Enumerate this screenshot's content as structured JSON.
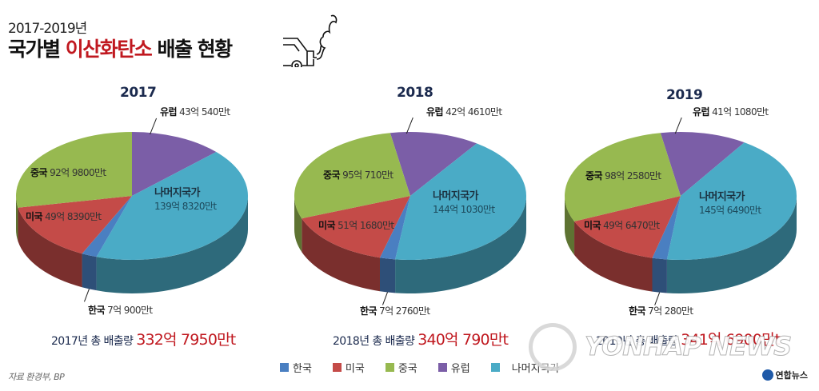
{
  "header": {
    "subtitle": "2017-2019년",
    "title_prefix": "국가별 ",
    "title_highlight": "이산화탄소",
    "title_suffix": " 배출 현황",
    "icon": "car-exhaust-icon"
  },
  "colors": {
    "korea": "#4a7fc1",
    "us": "#c44b48",
    "china": "#97b950",
    "europe": "#7b5ea7",
    "rest": "#4aabc6",
    "highlight": "#c0181f",
    "year_text": "#1b2a4e"
  },
  "charts": [
    {
      "year": "2017",
      "labels": {
        "europe": {
          "name": "유럽",
          "value": "43억 540만t"
        },
        "china": {
          "name": "중국",
          "value": "92억 9800만t"
        },
        "us": {
          "name": "미국",
          "value": "49억 8390만t"
        },
        "rest": {
          "name": "나머지국가",
          "value": "139억 8320만t"
        },
        "korea": {
          "name": "한국",
          "value": "7억 900만t"
        }
      },
      "total_label": "2017년 총 배출량 ",
      "total_value": "332억 7950만t"
    },
    {
      "year": "2018",
      "labels": {
        "europe": {
          "name": "유럽",
          "value": "42억 4610만t"
        },
        "china": {
          "name": "중국",
          "value": "95억 710만t"
        },
        "us": {
          "name": "미국",
          "value": "51억 1680만t"
        },
        "rest": {
          "name": "나머지국가",
          "value": "144억 1030만t"
        },
        "korea": {
          "name": "한국",
          "value": "7억 2760만t"
        }
      },
      "total_label": "2018년 총 배출량 ",
      "total_value": "340억 790만t"
    },
    {
      "year": "2019",
      "labels": {
        "europe": {
          "name": "유럽",
          "value": "41억 1080만t"
        },
        "china": {
          "name": "중국",
          "value": "98억 2580만t"
        },
        "us": {
          "name": "미국",
          "value": "49억 6470만t"
        },
        "rest": {
          "name": "나머지국가",
          "value": "145억 6490만t"
        },
        "korea": {
          "name": "한국",
          "value": "7억 280만t"
        }
      },
      "total_label": "2019년 총 배출량 ",
      "total_value": "341억 6900만t"
    }
  ],
  "legend": [
    {
      "key": "korea",
      "label": "한국"
    },
    {
      "key": "us",
      "label": "미국"
    },
    {
      "key": "china",
      "label": "중국"
    },
    {
      "key": "europe",
      "label": "유럽"
    },
    {
      "key": "rest",
      "label": "나머지국가"
    }
  ],
  "source": "자료 환경부, BP",
  "watermark": {
    "text": "YONHAP NEWS",
    "brand": "연합뉴스"
  },
  "chart_data": [
    {
      "type": "pie",
      "title": "2017",
      "categories": [
        "유럽",
        "나머지국가",
        "한국",
        "미국",
        "중국"
      ],
      "values": [
        43.054,
        139.832,
        7.09,
        49.839,
        92.98
      ],
      "unit": "억t",
      "total": 332.795,
      "start_angle": -90
    },
    {
      "type": "pie",
      "title": "2018",
      "categories": [
        "유럽",
        "나머지국가",
        "한국",
        "미국",
        "중국"
      ],
      "values": [
        42.461,
        144.103,
        7.276,
        51.168,
        95.071
      ],
      "unit": "억t",
      "total": 340.079,
      "start_angle": -100
    },
    {
      "type": "pie",
      "title": "2019",
      "categories": [
        "유럽",
        "나머지국가",
        "한국",
        "미국",
        "중국"
      ],
      "values": [
        41.108,
        145.649,
        7.028,
        49.647,
        98.258
      ],
      "unit": "억t",
      "total": 341.69,
      "start_angle": -100
    }
  ]
}
